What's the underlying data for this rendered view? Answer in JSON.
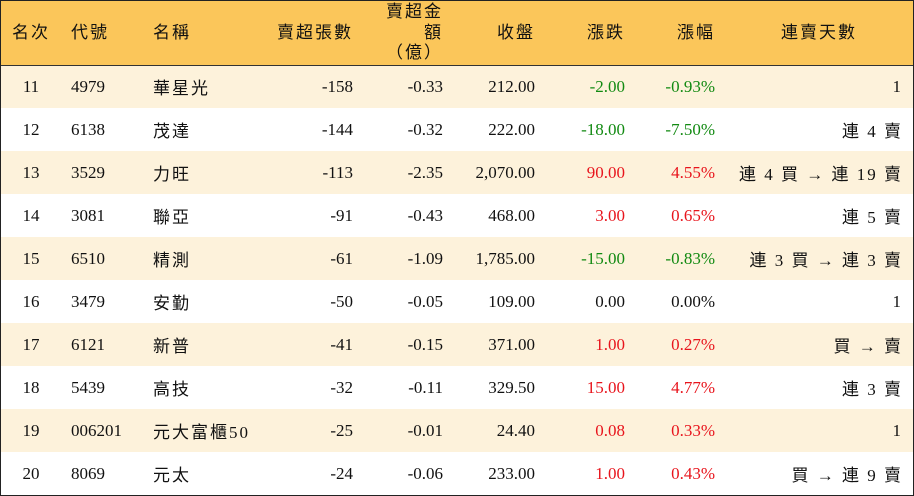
{
  "headers": {
    "rank": "名次",
    "code": "代號",
    "name": "名稱",
    "lots": "賣超張數",
    "amount_line1": "賣超金額",
    "amount_line2": "（億）",
    "close": "收盤",
    "change": "漲跌",
    "pct": "漲幅",
    "days": "連賣天數"
  },
  "rows": [
    {
      "rank": "11",
      "code": "4979",
      "name": "華星光",
      "lots": "-158",
      "amount": "-0.33",
      "close": "212.00",
      "change": "-2.00",
      "pct": "-0.93%",
      "dir": "down",
      "days": "1"
    },
    {
      "rank": "12",
      "code": "6138",
      "name": "茂達",
      "lots": "-144",
      "amount": "-0.32",
      "close": "222.00",
      "change": "-18.00",
      "pct": "-7.50%",
      "dir": "down",
      "days": "連 4 賣"
    },
    {
      "rank": "13",
      "code": "3529",
      "name": "力旺",
      "lots": "-113",
      "amount": "-2.35",
      "close": "2,070.00",
      "change": "90.00",
      "pct": "4.55%",
      "dir": "up",
      "days": "連 4 買 → 連 19 賣"
    },
    {
      "rank": "14",
      "code": "3081",
      "name": "聯亞",
      "lots": "-91",
      "amount": "-0.43",
      "close": "468.00",
      "change": "3.00",
      "pct": "0.65%",
      "dir": "up",
      "days": "連 5 賣"
    },
    {
      "rank": "15",
      "code": "6510",
      "name": "精測",
      "lots": "-61",
      "amount": "-1.09",
      "close": "1,785.00",
      "change": "-15.00",
      "pct": "-0.83%",
      "dir": "down",
      "days": "連 3 買 → 連 3 賣"
    },
    {
      "rank": "16",
      "code": "3479",
      "name": "安勤",
      "lots": "-50",
      "amount": "-0.05",
      "close": "109.00",
      "change": "0.00",
      "pct": "0.00%",
      "dir": "flat",
      "days": "1"
    },
    {
      "rank": "17",
      "code": "6121",
      "name": "新普",
      "lots": "-41",
      "amount": "-0.15",
      "close": "371.00",
      "change": "1.00",
      "pct": "0.27%",
      "dir": "up",
      "days": "買 → 賣"
    },
    {
      "rank": "18",
      "code": "5439",
      "name": "高技",
      "lots": "-32",
      "amount": "-0.11",
      "close": "329.50",
      "change": "15.00",
      "pct": "4.77%",
      "dir": "up",
      "days": "連 3 賣"
    },
    {
      "rank": "19",
      "code": "006201",
      "name": "元大富櫃50",
      "lots": "-25",
      "amount": "-0.01",
      "close": "24.40",
      "change": "0.08",
      "pct": "0.33%",
      "dir": "up",
      "days": "1"
    },
    {
      "rank": "20",
      "code": "8069",
      "name": "元太",
      "lots": "-24",
      "amount": "-0.06",
      "close": "233.00",
      "change": "1.00",
      "pct": "0.43%",
      "dir": "up",
      "days": "買 → 連 9 賣"
    }
  ],
  "colors": {
    "up": "#e8141c",
    "down": "#128a12",
    "flat": "#111111",
    "header_bg": "#fbc65a",
    "stripe_bg": "#fdf2db"
  }
}
